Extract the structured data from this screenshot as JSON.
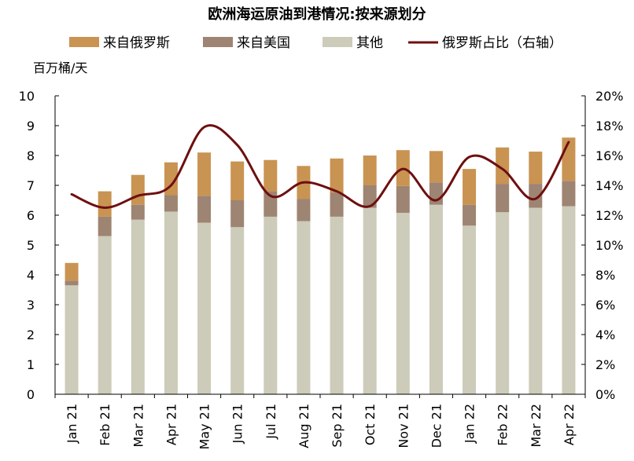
{
  "chart_data": {
    "type": "bar",
    "stacked": true,
    "title": "欧洲海运原油到港情况:按来源划分",
    "ylabel_left": "百万桶/天",
    "ylim_left": [
      0,
      10
    ],
    "yticks_left": [
      "0",
      "1",
      "2",
      "3",
      "4",
      "5",
      "6",
      "7",
      "8",
      "9",
      "10"
    ],
    "ylim_right": [
      0,
      20
    ],
    "yticks_right": [
      "0%",
      "2%",
      "4%",
      "6%",
      "8%",
      "10%",
      "12%",
      "14%",
      "16%",
      "18%",
      "20%"
    ],
    "categories": [
      "Jan 21",
      "Feb 21",
      "Mar 21",
      "Apr 21",
      "May 21",
      "Jun 21",
      "Jul 21",
      "Aug 21",
      "Sep 21",
      "Oct 21",
      "Nov 21",
      "Dec 21",
      "Jan 22",
      "Feb 22",
      "Mar 22",
      "Apr 22"
    ],
    "series": [
      {
        "name": "其他",
        "kind": "bar",
        "axis": "left",
        "color": "#cdcbb9",
        "values": [
          3.65,
          5.3,
          5.85,
          6.12,
          5.75,
          5.6,
          5.95,
          5.8,
          5.95,
          6.25,
          6.08,
          6.35,
          5.65,
          6.1,
          6.25,
          6.3
        ]
      },
      {
        "name": "来自美国",
        "kind": "bar",
        "axis": "left",
        "color": "#9e8472",
        "values": [
          0.15,
          0.65,
          0.5,
          0.55,
          0.9,
          0.9,
          0.85,
          0.75,
          0.8,
          0.75,
          0.9,
          0.75,
          0.7,
          0.95,
          0.8,
          0.85
        ]
      },
      {
        "name": "来自俄罗斯",
        "kind": "bar",
        "axis": "left",
        "color": "#c99352",
        "values": [
          0.6,
          0.85,
          1.0,
          1.1,
          1.45,
          1.3,
          1.05,
          1.1,
          1.15,
          1.0,
          1.2,
          1.05,
          1.2,
          1.22,
          1.08,
          1.45
        ]
      },
      {
        "name": "俄罗斯占比（右轴）",
        "kind": "line",
        "axis": "right",
        "color": "#6e0f0f",
        "values": [
          13.4,
          12.5,
          13.3,
          14.0,
          17.9,
          16.7,
          13.3,
          14.2,
          13.6,
          12.6,
          15.1,
          13.0,
          15.9,
          15.1,
          13.1,
          16.9
        ]
      }
    ],
    "legend_order": [
      "来自俄罗斯",
      "来自美国",
      "其他",
      "俄罗斯占比（右轴）"
    ],
    "legend_position": "top",
    "grid": false
  }
}
